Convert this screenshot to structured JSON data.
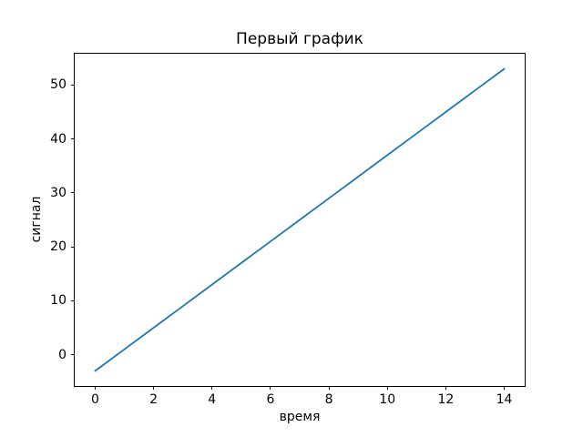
{
  "figure": {
    "background": "#ffffff",
    "text_color": "#000000",
    "spine_color": "#000000"
  },
  "chart_data": {
    "type": "line",
    "title": "Первый график",
    "xlabel": "время",
    "ylabel": "сигнал",
    "x_ticks": [
      0,
      2,
      4,
      6,
      8,
      10,
      12,
      14
    ],
    "y_ticks": [
      0,
      10,
      20,
      30,
      40,
      50
    ],
    "xlim": [
      -0.7,
      14.7
    ],
    "ylim": [
      -5.8,
      55.8
    ],
    "grid": false,
    "legend_position": "none",
    "series": [
      {
        "color": "#1f77b4",
        "line_width": 1.8,
        "x": [
          0,
          1,
          2,
          3,
          4,
          5,
          6,
          7,
          8,
          9,
          10,
          11,
          12,
          13,
          14
        ],
        "y": [
          -3,
          1,
          5,
          9,
          13,
          17,
          21,
          25,
          29,
          33,
          37,
          41,
          45,
          49,
          53
        ]
      }
    ]
  }
}
